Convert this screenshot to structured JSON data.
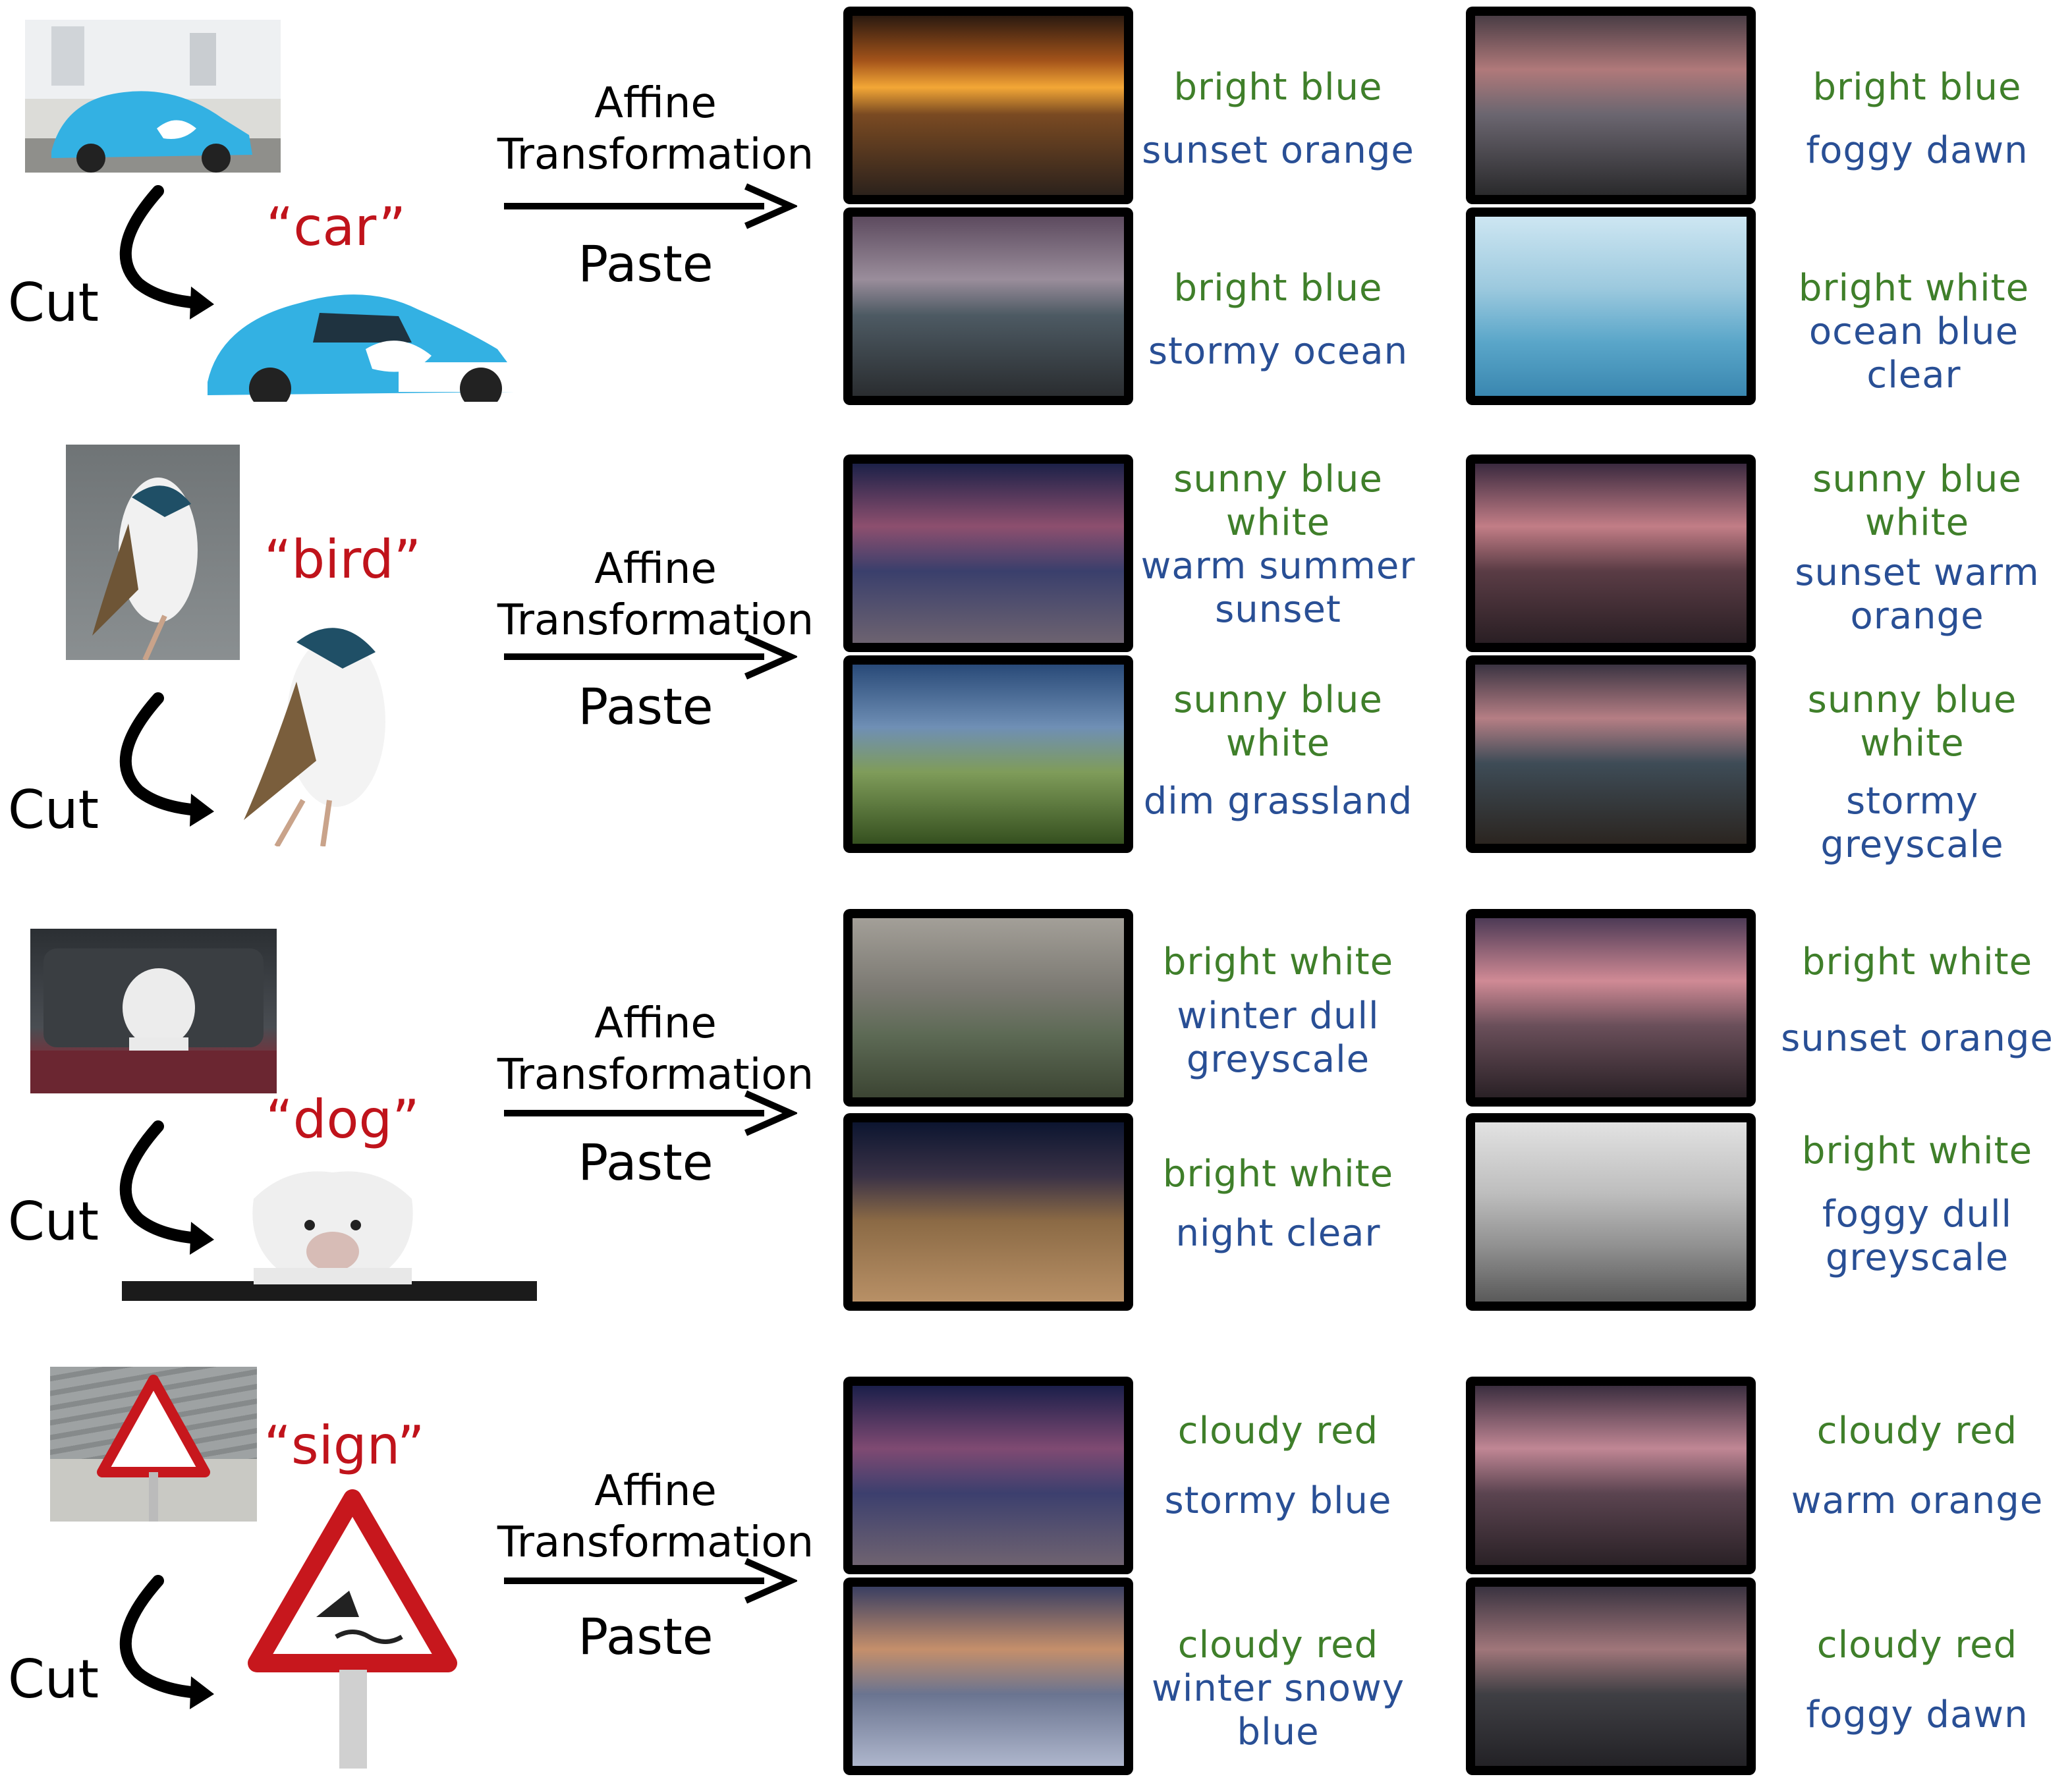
{
  "steps": {
    "affine_line1": "Affine",
    "affine_line2": "Transformation",
    "paste": "Paste",
    "cut": "Cut"
  },
  "rows": [
    {
      "class_label": "“car”",
      "results": [
        {
          "lines": [
            {
              "text": "bright blue",
              "tone": "green"
            },
            {
              "text": "sunset orange",
              "tone": "blue"
            }
          ]
        },
        {
          "lines": [
            {
              "text": "bright blue",
              "tone": "green"
            },
            {
              "text": "foggy dawn",
              "tone": "blue"
            }
          ]
        },
        {
          "lines": [
            {
              "text": "bright blue",
              "tone": "green"
            },
            {
              "text": "stormy ocean",
              "tone": "blue"
            }
          ]
        },
        {
          "lines": [
            {
              "text": "bright white",
              "tone": "green"
            },
            {
              "text": "ocean blue clear",
              "tone": "blue"
            }
          ]
        }
      ]
    },
    {
      "class_label": "“bird”",
      "results": [
        {
          "lines": [
            {
              "text": "sunny blue",
              "tone": "green"
            },
            {
              "text": "white",
              "tone": "green"
            },
            {
              "text": "warm summer",
              "tone": "blue"
            },
            {
              "text": "sunset",
              "tone": "blue"
            }
          ]
        },
        {
          "lines": [
            {
              "text": "sunny blue",
              "tone": "green"
            },
            {
              "text": "white",
              "tone": "green"
            },
            {
              "text": "sunset warm",
              "tone": "blue"
            },
            {
              "text": "orange",
              "tone": "blue"
            }
          ]
        },
        {
          "lines": [
            {
              "text": "sunny blue",
              "tone": "green"
            },
            {
              "text": "white",
              "tone": "green"
            },
            {
              "text": "dim grassland",
              "tone": "blue"
            }
          ]
        },
        {
          "lines": [
            {
              "text": "sunny blue",
              "tone": "green"
            },
            {
              "text": "white",
              "tone": "green"
            },
            {
              "text": "stormy greyscale",
              "tone": "blue"
            }
          ]
        }
      ]
    },
    {
      "class_label": "“dog”",
      "results": [
        {
          "lines": [
            {
              "text": "bright white",
              "tone": "green"
            },
            {
              "text": "winter dull",
              "tone": "blue"
            },
            {
              "text": "greyscale",
              "tone": "blue"
            }
          ]
        },
        {
          "lines": [
            {
              "text": "bright white",
              "tone": "green"
            },
            {
              "text": "sunset orange",
              "tone": "blue"
            }
          ]
        },
        {
          "lines": [
            {
              "text": "bright white",
              "tone": "green"
            },
            {
              "text": "night clear",
              "tone": "blue"
            }
          ]
        },
        {
          "lines": [
            {
              "text": "bright white",
              "tone": "green"
            },
            {
              "text": "foggy dull",
              "tone": "blue"
            },
            {
              "text": "greyscale",
              "tone": "blue"
            }
          ]
        }
      ]
    },
    {
      "class_label": "“sign”",
      "results": [
        {
          "lines": [
            {
              "text": "cloudy red",
              "tone": "green"
            },
            {
              "text": "stormy blue",
              "tone": "blue"
            }
          ]
        },
        {
          "lines": [
            {
              "text": "cloudy red",
              "tone": "green"
            },
            {
              "text": "warm orange",
              "tone": "blue"
            }
          ]
        },
        {
          "lines": [
            {
              "text": "cloudy red",
              "tone": "green"
            },
            {
              "text": "winter snowy",
              "tone": "blue"
            },
            {
              "text": "blue",
              "tone": "blue"
            }
          ]
        },
        {
          "lines": [
            {
              "text": "cloudy red",
              "tone": "green"
            },
            {
              "text": "foggy dawn",
              "tone": "blue"
            }
          ]
        }
      ]
    }
  ],
  "colors": {
    "green": "#3f7f2a",
    "blue": "#294f95",
    "class_red": "#c0131b"
  }
}
